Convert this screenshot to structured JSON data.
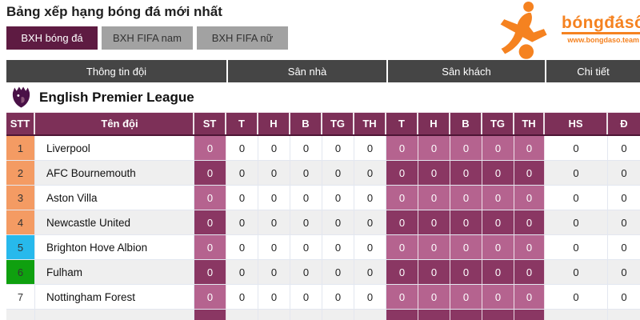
{
  "page_title": "Bảng xếp hạng bóng đá mới nhất",
  "logo": {
    "brand": "bóngđásố",
    "website": "www.bongdaso.team",
    "accent": "#f58220"
  },
  "tabs": [
    {
      "label": "BXH bóng đá",
      "active": true
    },
    {
      "label": "BXH FIFA nam",
      "active": false
    },
    {
      "label": "BXH FIFA nữ",
      "active": false
    }
  ],
  "column_groups": [
    {
      "label": "Thông tin đội"
    },
    {
      "label": "Sân nhà"
    },
    {
      "label": "Sân khách"
    },
    {
      "label": "Chi tiết"
    }
  ],
  "league": {
    "name": "English Premier League"
  },
  "standings": {
    "headers": {
      "rank": "STT",
      "team": "Tên đội",
      "played": "ST",
      "home": [
        "T",
        "H",
        "B",
        "TG",
        "TH"
      ],
      "away": [
        "T",
        "H",
        "B",
        "TG",
        "TH"
      ],
      "diff": "HS",
      "points": "Đ"
    },
    "rows": [
      {
        "rank": "1",
        "team": "Liverpool",
        "rank_color": "#f49b63",
        "st": "0",
        "home": [
          "0",
          "0",
          "0",
          "0",
          "0"
        ],
        "away": [
          "0",
          "0",
          "0",
          "0",
          "0"
        ],
        "hs": "0",
        "d": "0"
      },
      {
        "rank": "2",
        "team": "AFC Bournemouth",
        "rank_color": "#f49b63",
        "st": "0",
        "home": [
          "0",
          "0",
          "0",
          "0",
          "0"
        ],
        "away": [
          "0",
          "0",
          "0",
          "0",
          "0"
        ],
        "hs": "0",
        "d": "0"
      },
      {
        "rank": "3",
        "team": "Aston Villa",
        "rank_color": "#f49b63",
        "st": "0",
        "home": [
          "0",
          "0",
          "0",
          "0",
          "0"
        ],
        "away": [
          "0",
          "0",
          "0",
          "0",
          "0"
        ],
        "hs": "0",
        "d": "0"
      },
      {
        "rank": "4",
        "team": "Newcastle United",
        "rank_color": "#f49b63",
        "st": "0",
        "home": [
          "0",
          "0",
          "0",
          "0",
          "0"
        ],
        "away": [
          "0",
          "0",
          "0",
          "0",
          "0"
        ],
        "hs": "0",
        "d": "0"
      },
      {
        "rank": "5",
        "team": "Brighton Hove Albion",
        "rank_color": "#27b9ec",
        "st": "0",
        "home": [
          "0",
          "0",
          "0",
          "0",
          "0"
        ],
        "away": [
          "0",
          "0",
          "0",
          "0",
          "0"
        ],
        "hs": "0",
        "d": "0"
      },
      {
        "rank": "6",
        "team": "Fulham",
        "rank_color": "#0fa00f",
        "st": "0",
        "home": [
          "0",
          "0",
          "0",
          "0",
          "0"
        ],
        "away": [
          "0",
          "0",
          "0",
          "0",
          "0"
        ],
        "hs": "0",
        "d": "0"
      },
      {
        "rank": "7",
        "team": "Nottingham Forest",
        "rank_color": "",
        "st": "0",
        "home": [
          "0",
          "0",
          "0",
          "0",
          "0"
        ],
        "away": [
          "0",
          "0",
          "0",
          "0",
          "0"
        ],
        "hs": "0",
        "d": "0"
      },
      {
        "rank": "",
        "team": "",
        "rank_color": "",
        "st": "",
        "home": [
          "",
          "",
          "",
          "",
          ""
        ],
        "away": [
          "",
          "",
          "",
          "",
          ""
        ],
        "hs": "",
        "d": ""
      }
    ]
  },
  "colors": {
    "active_tab": "#5e1b42",
    "inactive_tab": "#a2a2a2",
    "group_header": "#454545",
    "table_header": "#7d3058",
    "cell_light": "#b5638f",
    "cell_dark": "#8a3763",
    "rank_orange": "#f49b63",
    "rank_cyan": "#27b9ec",
    "rank_green": "#0fa00f"
  }
}
